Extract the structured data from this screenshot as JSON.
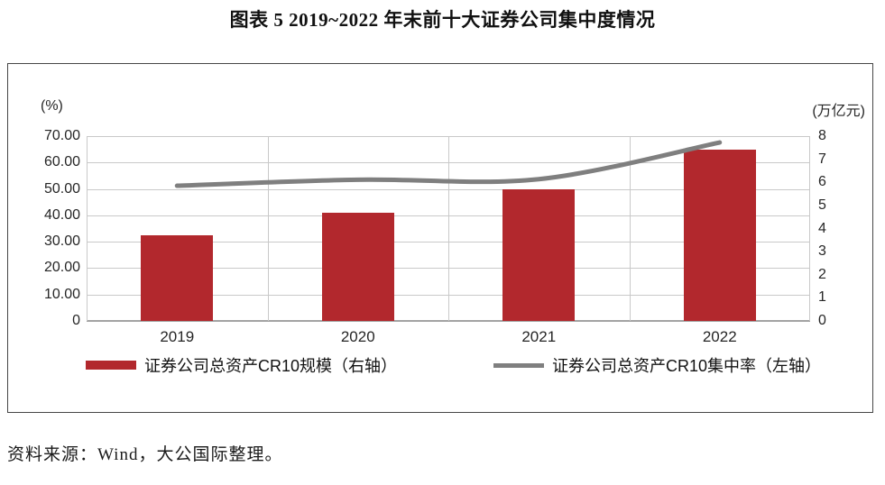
{
  "title": "图表 5 2019~2022 年末前十大证券公司集中度情况",
  "source_note": "资料来源：Wind，大公国际整理。",
  "chart_data": {
    "type": "combo",
    "categories": [
      "2019",
      "2020",
      "2021",
      "2022"
    ],
    "series": [
      {
        "name": "证券公司总资产CR10规模（右轴）",
        "type": "bar",
        "axis": "right",
        "unit": "万亿元",
        "values": [
          3.7,
          4.7,
          5.7,
          7.4
        ],
        "color": "#B2282D"
      },
      {
        "name": "证券公司总资产CR10集中率（左轴）",
        "type": "line",
        "axis": "left",
        "unit": "%",
        "values": [
          51.2,
          53.5,
          53.7,
          67.6
        ],
        "color": "#7F7F7F",
        "smooth": true
      }
    ],
    "left_axis": {
      "label": "(%)",
      "min": 0,
      "max": 70,
      "tick_labels": [
        "70.00",
        "60.00",
        "50.00",
        "40.00",
        "30.00",
        "20.00",
        "10.00",
        "0"
      ]
    },
    "right_axis": {
      "label": "(万亿元)",
      "min": 0,
      "max": 8,
      "tick_labels": [
        "8",
        "7",
        "6",
        "5",
        "4",
        "3",
        "2",
        "1",
        "0"
      ]
    },
    "grid": true,
    "legend_position": "bottom"
  }
}
